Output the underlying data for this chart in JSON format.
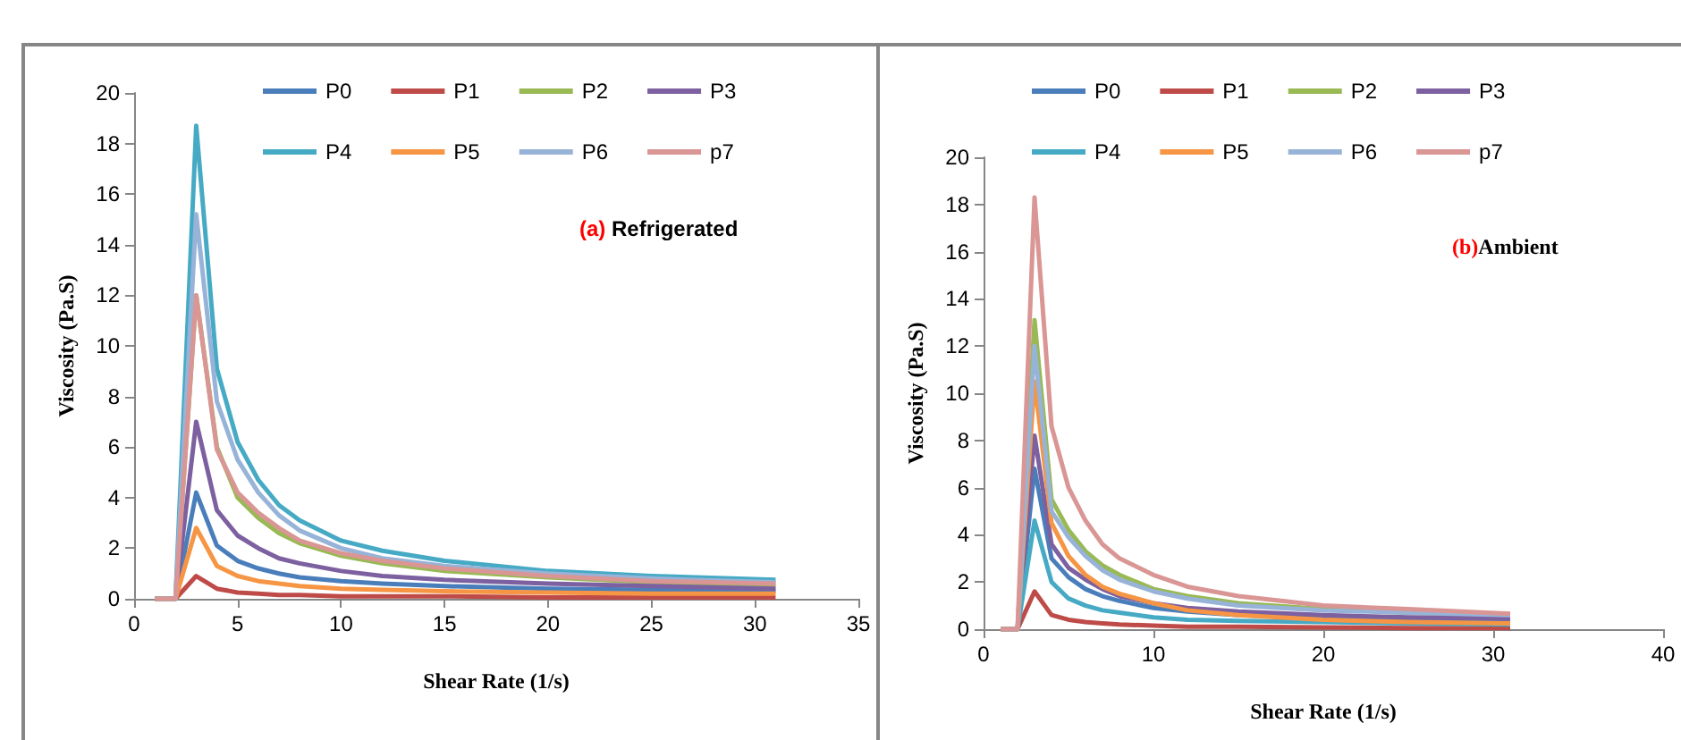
{
  "chart_data": [
    {
      "type": "line",
      "xlabel": "Shear Rate (1/s)",
      "ylabel": "Viscosity (Pa.S)",
      "annotations": [
        "(a) Refrigerated"
      ],
      "x": [
        1,
        2,
        3,
        4,
        5,
        6,
        7,
        8,
        10,
        12,
        15,
        20,
        25,
        31
      ],
      "xlim": [
        0,
        35
      ],
      "xticks": [
        0,
        5,
        10,
        15,
        20,
        25,
        30,
        35
      ],
      "ylim": [
        0,
        20
      ],
      "yticks": [
        0,
        2,
        4,
        6,
        8,
        10,
        12,
        14,
        16,
        18,
        20
      ],
      "legend": "top",
      "grid": false,
      "marker": "none",
      "line_style": "solid",
      "series": [
        {
          "name": "P0",
          "color": "#4a7ebb",
          "values": [
            0,
            0,
            4.2,
            2.1,
            1.5,
            1.2,
            1.0,
            0.85,
            0.7,
            0.6,
            0.5,
            0.4,
            0.35,
            0.3
          ]
        },
        {
          "name": "P1",
          "color": "#be4b48",
          "values": [
            0,
            0,
            0.9,
            0.4,
            0.25,
            0.2,
            0.15,
            0.15,
            0.1,
            0.1,
            0.1,
            0.05,
            0.05,
            0.05
          ]
        },
        {
          "name": "P2",
          "color": "#98b954",
          "values": [
            0,
            0,
            12.0,
            6.0,
            4.0,
            3.2,
            2.6,
            2.2,
            1.7,
            1.4,
            1.1,
            0.85,
            0.65,
            0.5
          ]
        },
        {
          "name": "P3",
          "color": "#7d60a0",
          "values": [
            0,
            0,
            7.0,
            3.5,
            2.5,
            2.0,
            1.6,
            1.4,
            1.1,
            0.9,
            0.75,
            0.6,
            0.5,
            0.4
          ]
        },
        {
          "name": "P4",
          "color": "#46aac5",
          "values": [
            0,
            0,
            18.7,
            9.1,
            6.2,
            4.7,
            3.7,
            3.1,
            2.3,
            1.9,
            1.5,
            1.1,
            0.9,
            0.75
          ]
        },
        {
          "name": "P5",
          "color": "#f69544",
          "values": [
            0,
            0,
            2.8,
            1.3,
            0.9,
            0.7,
            0.6,
            0.5,
            0.4,
            0.35,
            0.3,
            0.25,
            0.2,
            0.2
          ]
        },
        {
          "name": "P6",
          "color": "#97b3d8",
          "values": [
            0,
            0,
            15.2,
            7.8,
            5.5,
            4.2,
            3.3,
            2.7,
            2.0,
            1.6,
            1.3,
            1.0,
            0.8,
            0.65
          ]
        },
        {
          "name": "p7",
          "color": "#d99694",
          "values": [
            0,
            0,
            12.0,
            5.9,
            4.2,
            3.4,
            2.8,
            2.3,
            1.8,
            1.5,
            1.2,
            0.9,
            0.7,
            0.6
          ]
        }
      ]
    },
    {
      "type": "line",
      "xlabel": "Shear Rate (1/s)",
      "ylabel": "Viscosity (Pa.S)",
      "annotations": [
        "(b)Ambient"
      ],
      "x": [
        1,
        2,
        3,
        4,
        5,
        6,
        7,
        8,
        10,
        12,
        15,
        20,
        25,
        31
      ],
      "xlim": [
        0,
        40
      ],
      "xticks": [
        0,
        10,
        20,
        30,
        40
      ],
      "ylim": [
        0,
        20
      ],
      "yticks": [
        0,
        2,
        4,
        6,
        8,
        10,
        12,
        14,
        16,
        18,
        20
      ],
      "legend": "top",
      "grid": false,
      "marker": "none",
      "line_style": "solid",
      "series": [
        {
          "name": "P0",
          "color": "#4a7ebb",
          "values": [
            0,
            0,
            6.8,
            3.0,
            2.2,
            1.7,
            1.4,
            1.2,
            0.9,
            0.75,
            0.6,
            0.5,
            0.4,
            0.35
          ]
        },
        {
          "name": "P1",
          "color": "#be4b48",
          "values": [
            0,
            0,
            1.6,
            0.6,
            0.4,
            0.3,
            0.25,
            0.2,
            0.15,
            0.1,
            0.1,
            0.08,
            0.05,
            0.05
          ]
        },
        {
          "name": "P2",
          "color": "#98b954",
          "values": [
            0,
            0,
            13.1,
            5.5,
            4.2,
            3.3,
            2.7,
            2.3,
            1.7,
            1.4,
            1.1,
            0.85,
            0.7,
            0.55
          ]
        },
        {
          "name": "P3",
          "color": "#7d60a0",
          "values": [
            0,
            0,
            8.2,
            3.6,
            2.6,
            2.1,
            1.7,
            1.4,
            1.1,
            0.9,
            0.75,
            0.6,
            0.5,
            0.45
          ]
        },
        {
          "name": "P4",
          "color": "#46aac5",
          "values": [
            0,
            0,
            4.6,
            2.0,
            1.3,
            1.0,
            0.8,
            0.7,
            0.5,
            0.4,
            0.35,
            0.3,
            0.25,
            0.2
          ]
        },
        {
          "name": "P5",
          "color": "#f69544",
          "values": [
            0,
            0,
            10.5,
            4.5,
            3.1,
            2.3,
            1.8,
            1.5,
            1.1,
            0.8,
            0.6,
            0.4,
            0.3,
            0.25
          ]
        },
        {
          "name": "P6",
          "color": "#97b3d8",
          "values": [
            0,
            0,
            12.0,
            5.0,
            3.9,
            3.1,
            2.5,
            2.1,
            1.6,
            1.3,
            1.0,
            0.8,
            0.7,
            0.6
          ]
        },
        {
          "name": "p7",
          "color": "#d99694",
          "values": [
            0,
            0,
            18.3,
            8.6,
            6.0,
            4.6,
            3.6,
            3.0,
            2.3,
            1.8,
            1.4,
            1.0,
            0.85,
            0.65
          ]
        }
      ]
    }
  ]
}
